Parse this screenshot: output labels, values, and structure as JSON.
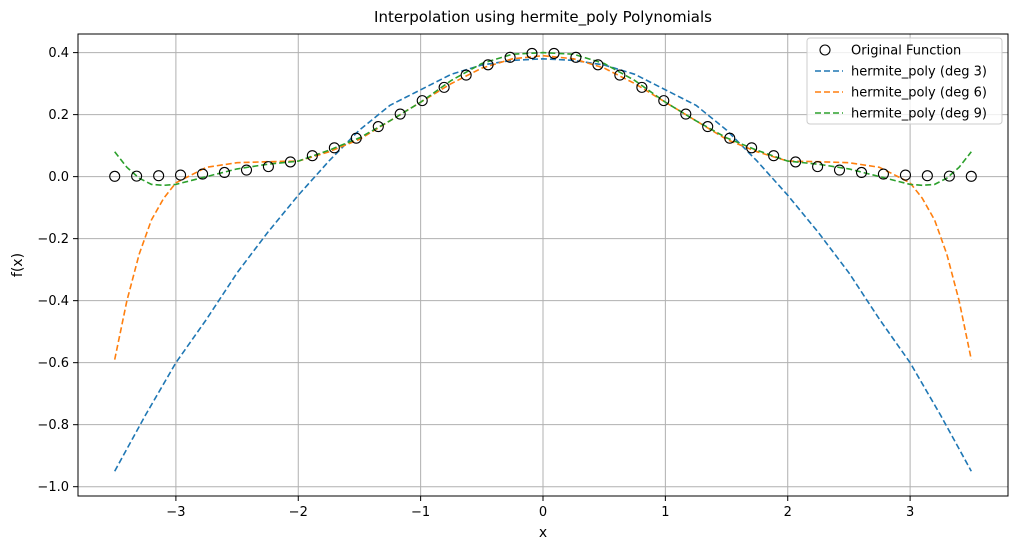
{
  "chart_data": {
    "type": "line",
    "title": "Interpolation using hermite_poly Polynomials",
    "xlabel": "x",
    "ylabel": "f(x)",
    "xlim": [
      -3.8,
      3.8
    ],
    "ylim": [
      -1.03,
      0.46
    ],
    "xticks": [
      -3,
      -2,
      -1,
      0,
      1,
      2,
      3
    ],
    "xtick_labels": [
      "−3",
      "−2",
      "−1",
      "0",
      "1",
      "2",
      "3"
    ],
    "yticks": [
      -1.0,
      -0.8,
      -0.6,
      -0.4,
      -0.2,
      0.0,
      0.2,
      0.4
    ],
    "ytick_labels": [
      "−1.0",
      "−0.8",
      "−0.6",
      "−0.4",
      "−0.2",
      "0.0",
      "0.2",
      "0.4"
    ],
    "grid": true,
    "legend_position": "top-right",
    "scatter": {
      "name": "Original Function",
      "marker": "open-circle",
      "color": "#000000",
      "x": [
        -3.5,
        -3.321,
        -3.141,
        -2.962,
        -2.782,
        -2.603,
        -2.423,
        -2.244,
        -2.064,
        -1.885,
        -1.705,
        -1.526,
        -1.346,
        -1.167,
        -0.987,
        -0.808,
        -0.628,
        -0.449,
        -0.269,
        -0.09,
        0.09,
        0.269,
        0.449,
        0.628,
        0.808,
        0.987,
        1.167,
        1.346,
        1.526,
        1.705,
        1.885,
        2.064,
        2.244,
        2.423,
        2.603,
        2.782,
        2.962,
        3.141,
        3.321,
        3.5
      ],
      "y": [
        0.0009,
        0.0016,
        0.0029,
        0.005,
        0.0083,
        0.0134,
        0.0212,
        0.0323,
        0.0475,
        0.0675,
        0.0929,
        0.124,
        0.1614,
        0.2018,
        0.2451,
        0.2879,
        0.3275,
        0.3607,
        0.3848,
        0.3973,
        0.3973,
        0.3848,
        0.3607,
        0.3275,
        0.2879,
        0.2451,
        0.2018,
        0.1614,
        0.124,
        0.0929,
        0.0675,
        0.0475,
        0.0323,
        0.0212,
        0.0134,
        0.0083,
        0.005,
        0.0029,
        0.0016,
        0.0009
      ]
    },
    "series": [
      {
        "name": "hermite_poly (deg 3)",
        "color": "#1f77b4",
        "x": [
          -3.5,
          -3.25,
          -3.0,
          -2.75,
          -2.5,
          -2.25,
          -2.0,
          -1.75,
          -1.5,
          -1.25,
          -1.0,
          -0.75,
          -0.5,
          -0.25,
          0.0,
          0.25,
          0.5,
          0.75,
          1.0,
          1.25,
          1.5,
          1.75,
          2.0,
          2.25,
          2.5,
          2.75,
          3.0,
          3.25,
          3.5
        ],
        "y": [
          -0.95,
          -0.77,
          -0.6,
          -0.46,
          -0.31,
          -0.18,
          -0.06,
          0.05,
          0.15,
          0.23,
          0.28,
          0.33,
          0.36,
          0.375,
          0.38,
          0.375,
          0.36,
          0.33,
          0.28,
          0.23,
          0.15,
          0.05,
          -0.06,
          -0.18,
          -0.31,
          -0.46,
          -0.6,
          -0.77,
          -0.95
        ]
      },
      {
        "name": "hermite_poly (deg 6)",
        "color": "#ff7f0e",
        "x": [
          -3.5,
          -3.4,
          -3.3,
          -3.2,
          -3.1,
          -3.0,
          -2.9,
          -2.75,
          -2.5,
          -2.25,
          -2.0,
          -1.75,
          -1.5,
          -1.25,
          -1.0,
          -0.75,
          -0.5,
          -0.25,
          0.0,
          0.25,
          0.5,
          0.75,
          1.0,
          1.25,
          1.5,
          1.75,
          2.0,
          2.25,
          2.5,
          2.75,
          2.9,
          3.0,
          3.1,
          3.2,
          3.3,
          3.4,
          3.5
        ],
        "y": [
          -0.59,
          -0.4,
          -0.25,
          -0.14,
          -0.07,
          -0.02,
          0.0,
          0.03,
          0.045,
          0.048,
          0.05,
          0.08,
          0.12,
          0.18,
          0.24,
          0.3,
          0.35,
          0.38,
          0.39,
          0.38,
          0.35,
          0.3,
          0.24,
          0.18,
          0.12,
          0.08,
          0.05,
          0.048,
          0.045,
          0.03,
          0.0,
          -0.02,
          -0.07,
          -0.14,
          -0.25,
          -0.4,
          -0.59
        ]
      },
      {
        "name": "hermite_poly (deg 9)",
        "color": "#2ca02c",
        "x": [
          -3.5,
          -3.4,
          -3.3,
          -3.2,
          -3.1,
          -3.0,
          -2.9,
          -2.75,
          -2.5,
          -2.25,
          -2.0,
          -1.75,
          -1.5,
          -1.25,
          -1.0,
          -0.75,
          -0.5,
          -0.25,
          0.0,
          0.25,
          0.5,
          0.75,
          1.0,
          1.25,
          1.5,
          1.75,
          2.0,
          2.25,
          2.5,
          2.75,
          2.9,
          3.0,
          3.1,
          3.2,
          3.3,
          3.4,
          3.5
        ],
        "y": [
          0.08,
          0.03,
          -0.005,
          -0.025,
          -0.028,
          -0.025,
          -0.015,
          0.0,
          0.025,
          0.04,
          0.05,
          0.085,
          0.125,
          0.18,
          0.24,
          0.31,
          0.365,
          0.395,
          0.4,
          0.395,
          0.365,
          0.31,
          0.24,
          0.18,
          0.125,
          0.085,
          0.05,
          0.04,
          0.025,
          0.0,
          -0.015,
          -0.025,
          -0.028,
          -0.025,
          -0.005,
          0.03,
          0.08
        ]
      }
    ]
  }
}
